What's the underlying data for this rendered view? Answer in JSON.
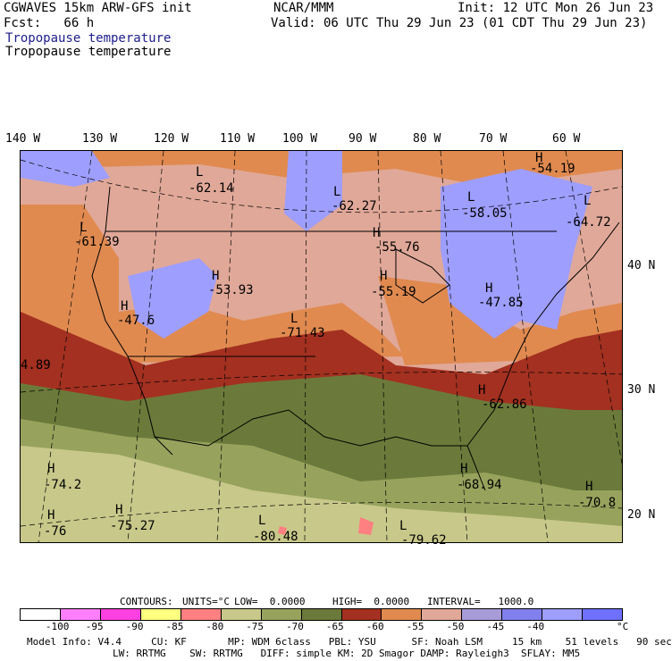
{
  "header": {
    "model": "CGWAVES 15km ARW-GFS init",
    "org": "NCAR/MMM",
    "init": "Init: 12 UTC Mon 26 Jun 23",
    "fcst": "Fcst:   66 h",
    "valid": "Valid: 06 UTC Thu 29 Jun 23 (01 CDT Thu 29 Jun 23)",
    "field_title_1": "Tropopause temperature",
    "field_title_2": "Tropopause temperature"
  },
  "longitudes": [
    "140 W",
    "130 W",
    "120 W",
    "110 W",
    "100 W",
    "90 W",
    "80 W",
    "70 W",
    "60 W"
  ],
  "latitudes": [
    "40 N",
    "30 N",
    "20 N"
  ],
  "labels": [
    {
      "type": "L",
      "value": "-62.14"
    },
    {
      "type": "L",
      "value": "-62.27"
    },
    {
      "type": "L",
      "value": "-58.05"
    },
    {
      "type": "H",
      "value": "-54.19"
    },
    {
      "type": "L",
      "value": "-64.72"
    },
    {
      "type": "L",
      "value": "-61.39"
    },
    {
      "type": "H",
      "value": "-55.76"
    },
    {
      "type": "H",
      "value": "-53.93"
    },
    {
      "type": "H",
      "value": "-55.19"
    },
    {
      "type": "H",
      "value": "-47.6"
    },
    {
      "type": "H",
      "value": "-47.85"
    },
    {
      "type": "L",
      "value": "-71.43"
    },
    {
      "type": "",
      "value": "4.89"
    },
    {
      "type": "H",
      "value": "-62.86"
    },
    {
      "type": "H",
      "value": "-74.2"
    },
    {
      "type": "H",
      "value": "-68.94"
    },
    {
      "type": "H",
      "value": "-70.8"
    },
    {
      "type": "H",
      "value": "-76"
    },
    {
      "type": "H",
      "value": "-75.27"
    },
    {
      "type": "L",
      "value": "-80.48"
    },
    {
      "type": "L",
      "value": "-79.62"
    }
  ],
  "contours": {
    "label": "CONTOURS:",
    "units": "UNITS=°C",
    "low": "LOW=  0.0000",
    "high": "HIGH=  0.0000",
    "interval": "INTERVAL=   1000.0"
  },
  "colorbar": {
    "colors": [
      "#ffffff",
      "#ff7fff",
      "#ff40e0",
      "#ffff80",
      "#ff8080",
      "#c8c88a",
      "#97a35d",
      "#6b7a3a",
      "#a33020",
      "#e08a50",
      "#e0a898",
      "#a89cd8",
      "#8080ee",
      "#9e9eff",
      "#7070ff"
    ],
    "ticks": [
      "-100",
      "-95",
      "-90",
      "-85",
      "-80",
      "-75",
      "-70",
      "-65",
      "-60",
      "-55",
      "-50",
      "-45",
      "-40"
    ],
    "unit": "°C"
  },
  "footer": {
    "line1": "Model Info: V4.4     CU: KF       MP: WDM 6class   PBL: YSU      SF: Noah LSM     15 km    51 levels   90 sec",
    "line2": "LW: RRTMG    SW: RRTMG   DIFF: simple KM: 2D Smagor DAMP: Rayleigh3  SFLAY: MM5"
  },
  "field_colors": {
    "very_cold": "#c8c88a",
    "cold": "#6b7a3a",
    "red": "#a33020",
    "orange": "#e08a50",
    "salmon": "#e0a898",
    "blue": "#9e9eff",
    "pink": "#ff8080"
  }
}
